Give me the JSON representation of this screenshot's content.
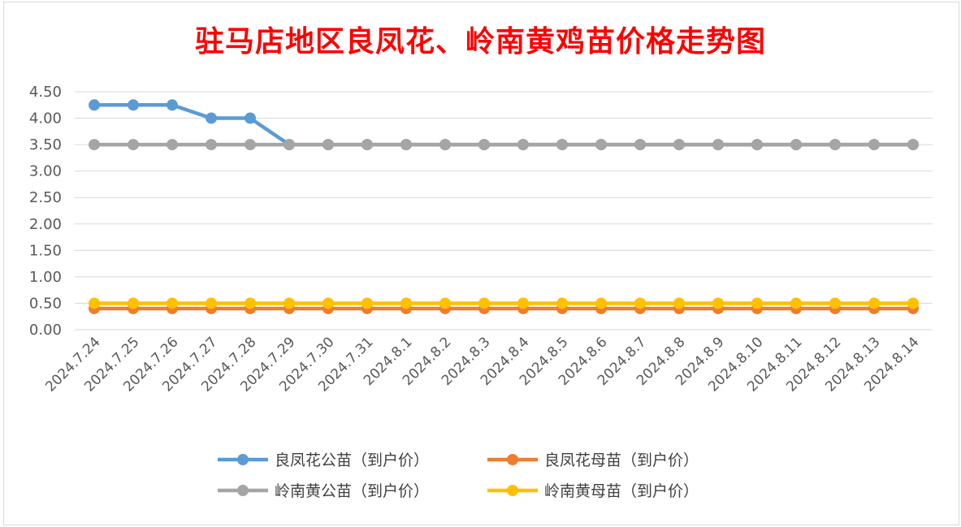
{
  "chart_data": {
    "type": "line",
    "title": "驻马店地区良凤花、岭南黄鸡苗价格走势图",
    "xlabel": "",
    "ylabel": "",
    "ylim": [
      0,
      4.5
    ],
    "yticks": [
      "0.00",
      "0.50",
      "1.00",
      "1.50",
      "2.00",
      "2.50",
      "3.00",
      "3.50",
      "4.00",
      "4.50"
    ],
    "grid": true,
    "legend_position": "bottom",
    "categories": [
      "2024.7.24",
      "2024.7.25",
      "2024.7.26",
      "2024.7.27",
      "2024.7.28",
      "2024.7.29",
      "2024.7.30",
      "2024.7.31",
      "2024.8.1",
      "2024.8.2",
      "2024.8.3",
      "2024.8.4",
      "2024.8.5",
      "2024.8.6",
      "2024.8.7",
      "2024.8.8",
      "2024.8.9",
      "2024.8.10",
      "2024.8.11",
      "2024.8.12",
      "2024.8.13",
      "2024.8.14"
    ],
    "series": [
      {
        "name": "良凤花公苗（到户价）",
        "color": "#5b9bd5",
        "values": [
          4.25,
          4.25,
          4.25,
          4.0,
          4.0,
          3.5,
          3.5,
          3.5,
          3.5,
          3.5,
          3.5,
          3.5,
          3.5,
          3.5,
          3.5,
          3.5,
          3.5,
          3.5,
          3.5,
          3.5,
          3.5,
          3.5
        ]
      },
      {
        "name": "良凤花母苗（到户价）",
        "color": "#ed7d31",
        "values": [
          0.4,
          0.4,
          0.4,
          0.4,
          0.4,
          0.4,
          0.4,
          0.4,
          0.4,
          0.4,
          0.4,
          0.4,
          0.4,
          0.4,
          0.4,
          0.4,
          0.4,
          0.4,
          0.4,
          0.4,
          0.4,
          0.4
        ]
      },
      {
        "name": "岭南黄公苗（到户价）",
        "color": "#a5a5a5",
        "values": [
          3.5,
          3.5,
          3.5,
          3.5,
          3.5,
          3.5,
          3.5,
          3.5,
          3.5,
          3.5,
          3.5,
          3.5,
          3.5,
          3.5,
          3.5,
          3.5,
          3.5,
          3.5,
          3.5,
          3.5,
          3.5,
          3.5
        ]
      },
      {
        "name": "岭南黄母苗（到户价）",
        "color": "#ffc000",
        "values": [
          0.5,
          0.5,
          0.5,
          0.5,
          0.5,
          0.5,
          0.5,
          0.5,
          0.5,
          0.5,
          0.5,
          0.5,
          0.5,
          0.5,
          0.5,
          0.5,
          0.5,
          0.5,
          0.5,
          0.5,
          0.5,
          0.5
        ]
      }
    ],
    "draw_order": [
      0,
      2,
      1,
      3
    ]
  }
}
